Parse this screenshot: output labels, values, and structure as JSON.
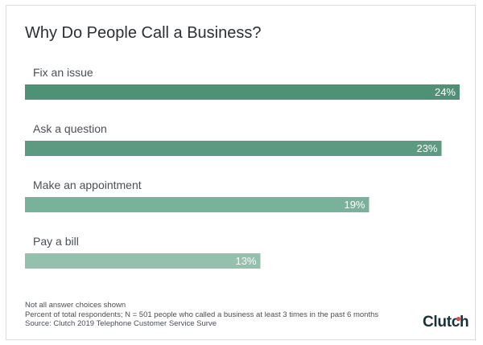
{
  "title": "Why Do People Call a Business?",
  "chart_data": {
    "type": "bar",
    "orientation": "horizontal",
    "title": "Why Do People Call a Business?",
    "categories": [
      "Fix an issue",
      "Ask a question",
      "Make an appointment",
      "Pay a bill"
    ],
    "values": [
      24,
      23,
      19,
      13
    ],
    "value_labels": [
      "24%",
      "23%",
      "19%",
      "13%"
    ],
    "unit": "%",
    "xlim": [
      0,
      24
    ],
    "grid": false,
    "legend": "none",
    "colors": [
      "#4e9176",
      "#5c9b81",
      "#7ab19b",
      "#93c1ae"
    ]
  },
  "notes": [
    "Not all answer choices shown",
    "Percent of total respondents; N = 501 people who called a business at least 3 times in the past 6 months",
    "Source: Clutch 2019 Telephone Customer Service Surve"
  ],
  "logo": {
    "text": "Clutch",
    "dot_color": "#ef4335"
  }
}
